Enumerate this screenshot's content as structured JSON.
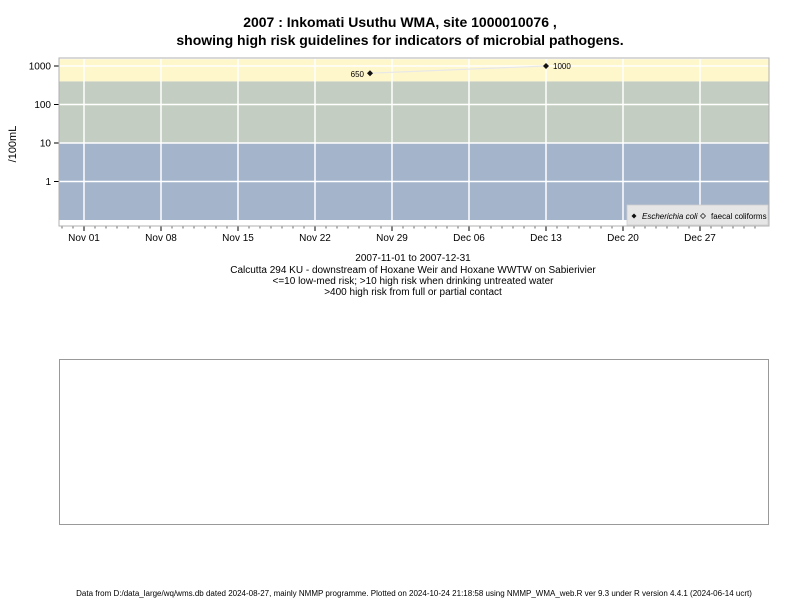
{
  "title": {
    "line1": "2007 : Inkomati Usuthu WMA, site 1000010076 ,",
    "line2": "showing high risk guidelines for indicators of microbial pathogens."
  },
  "chart_data": {
    "type": "line",
    "ylabel": "/100mL",
    "y_scale": "log",
    "ylim": [
      0.1,
      1500
    ],
    "y_ticks": [
      {
        "value": 1,
        "label": "1"
      },
      {
        "value": 10,
        "label": "10"
      },
      {
        "value": 100,
        "label": "100"
      },
      {
        "value": 1000,
        "label": "1000"
      }
    ],
    "x_ticks": [
      {
        "day": 0,
        "label": "Nov 01"
      },
      {
        "day": 7,
        "label": "Nov 08"
      },
      {
        "day": 14,
        "label": "Nov 15"
      },
      {
        "day": 21,
        "label": "Nov 22"
      },
      {
        "day": 28,
        "label": "Nov 29"
      },
      {
        "day": 35,
        "label": "Dec 06"
      },
      {
        "day": 42,
        "label": "Dec 13"
      },
      {
        "day": 49,
        "label": "Dec 20"
      },
      {
        "day": 56,
        "label": "Dec 27"
      }
    ],
    "risk_bands": [
      {
        "from": 0.1,
        "to": 10,
        "color": "#a3b4cb"
      },
      {
        "from": 10,
        "to": 400,
        "color": "#c4cdc1"
      },
      {
        "from": 400,
        "to": 1500,
        "color": "#fff7cc"
      }
    ],
    "series": [
      {
        "name": "Escherichia coli",
        "points": [
          {
            "date": "2007-11-27",
            "value": 650,
            "label": "650"
          },
          {
            "date": "2007-12-13",
            "value": 1000,
            "label": "1000"
          }
        ]
      },
      {
        "name": "faecal coliforms",
        "points": []
      }
    ],
    "legend_position": "bottom-right",
    "grid": true
  },
  "captions": {
    "line1": "2007-11-01 to 2007-12-31",
    "line2": "Calcutta 294 KU - downstream of Hoxane Weir and Hoxane WWTW on Sabierivier",
    "line3": "<=10 low-med risk; >10 high risk when drinking untreated water",
    "line4": ">400 high risk from full or partial contact"
  },
  "footer": "Data from D:/data_large/wq/wms.db dated 2024-08-27, mainly NMMP programme. Plotted on 2024-10-24 21:18:58 using NMMP_WMA_web.R ver 9.3 under R version 4.4.1 (2024-06-14 ucrt)"
}
